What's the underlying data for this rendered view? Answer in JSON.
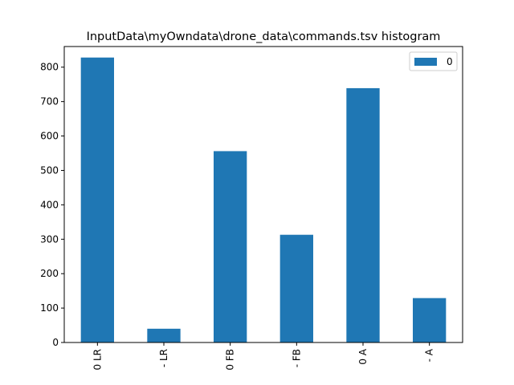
{
  "chart_data": {
    "type": "bar",
    "title": "InputData\\myOwndata\\drone_data\\commands.tsv histogram",
    "xlabel": "",
    "ylabel": "",
    "categories": [
      "0 LR",
      "- LR",
      "0 FB",
      "- FB",
      "0 A",
      "- A"
    ],
    "series": [
      {
        "name": "0",
        "values": [
          828,
          40,
          556,
          313,
          739,
          129
        ],
        "color": "#1f77b4"
      }
    ],
    "ylim": [
      0,
      860
    ],
    "yticks": [
      0,
      100,
      200,
      300,
      400,
      500,
      600,
      700,
      800
    ],
    "grid": false,
    "legend_position": "top-right",
    "x_tick_rotation": 90
  }
}
